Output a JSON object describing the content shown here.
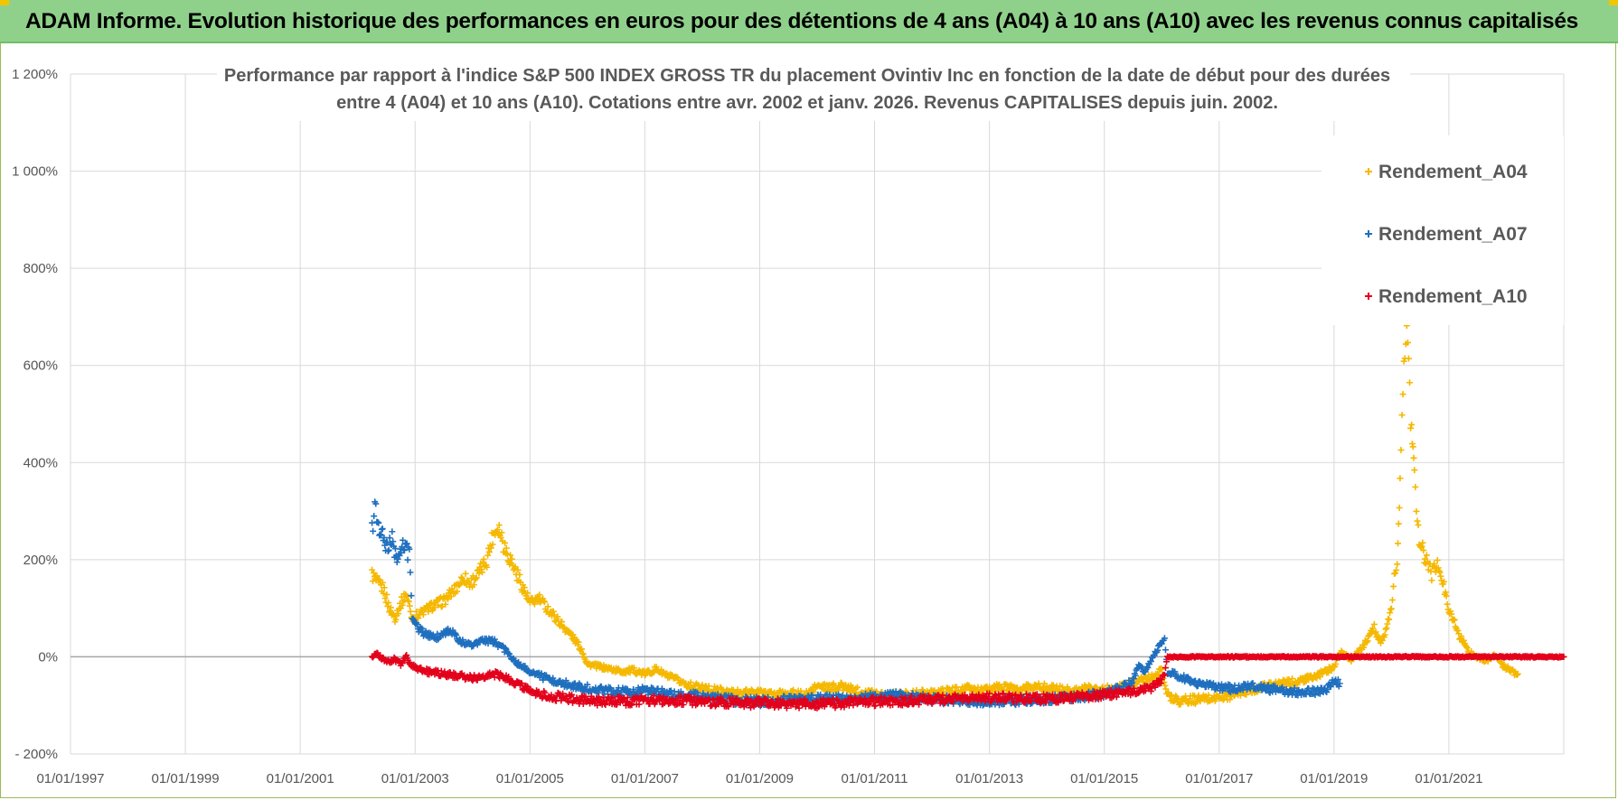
{
  "header": {
    "title": "ADAM Informe. Evolution historique des performances en euros pour des détentions de 4 ans (A04) à 10 ans (A10) avec les revenus connus capitalisés"
  },
  "colors": {
    "header_bg": "#8fd18a",
    "a04": "#f5b800",
    "a07": "#1f6fbf",
    "a10": "#e3001b",
    "grid": "#d9d9d9",
    "zero_line": "#a6a6a6"
  },
  "chart_data": {
    "type": "scatter",
    "title_lines": [
      "Performance par rapport à l'indice S&P 500 INDEX GROSS TR  du placement Ovintiv Inc en fonction de la date de début pour des durées",
      "entre 4 (A04) et 10 ans (A10).  Cotations entre avr. 2002 et janv. 2026. Revenus CAPITALISES depuis juin. 2002."
    ],
    "ylim": [
      -200,
      1200
    ],
    "yticks": [
      {
        "value": -200,
        "label": "- 200%"
      },
      {
        "value": 0,
        "label": "0%"
      },
      {
        "value": 200,
        "label": "200%"
      },
      {
        "value": 400,
        "label": "400%"
      },
      {
        "value": 600,
        "label": "600%"
      },
      {
        "value": 800,
        "label": "800%"
      },
      {
        "value": 1000,
        "label": "1 000%"
      },
      {
        "value": 1200,
        "label": "1 200%"
      }
    ],
    "xlim": [
      1997.0,
      2023.0
    ],
    "xticks": [
      {
        "value": 1997.0,
        "label": "01/01/1997"
      },
      {
        "value": 1999.0,
        "label": "01/01/1999"
      },
      {
        "value": 2001.0,
        "label": "01/01/2001"
      },
      {
        "value": 2003.0,
        "label": "01/01/2003"
      },
      {
        "value": 2005.0,
        "label": "01/01/2005"
      },
      {
        "value": 2007.0,
        "label": "01/01/2007"
      },
      {
        "value": 2009.0,
        "label": "01/01/2009"
      },
      {
        "value": 2011.0,
        "label": "01/01/2011"
      },
      {
        "value": 2013.0,
        "label": "01/01/2013"
      },
      {
        "value": 2015.0,
        "label": "01/01/2015"
      },
      {
        "value": 2017.0,
        "label": "01/01/2017"
      },
      {
        "value": 2019.0,
        "label": "01/01/2019"
      },
      {
        "value": 2021.0,
        "label": "01/01/2021"
      }
    ],
    "legend_position": "top-right",
    "series": [
      {
        "name": "Rendement_A04",
        "color": "#f5b800",
        "points": [
          [
            2002.25,
            170
          ],
          [
            2002.35,
            150
          ],
          [
            2002.45,
            140
          ],
          [
            2002.55,
            100
          ],
          [
            2002.65,
            80
          ],
          [
            2002.75,
            110
          ],
          [
            2002.85,
            130
          ],
          [
            2002.95,
            80
          ],
          [
            2003.1,
            90
          ],
          [
            2003.3,
            105
          ],
          [
            2003.5,
            115
          ],
          [
            2003.7,
            140
          ],
          [
            2003.85,
            165
          ],
          [
            2003.95,
            150
          ],
          [
            2004.1,
            170
          ],
          [
            2004.25,
            200
          ],
          [
            2004.35,
            250
          ],
          [
            2004.45,
            270
          ],
          [
            2004.55,
            230
          ],
          [
            2004.7,
            190
          ],
          [
            2004.85,
            150
          ],
          [
            2005.0,
            110
          ],
          [
            2005.15,
            120
          ],
          [
            2005.3,
            100
          ],
          [
            2005.45,
            80
          ],
          [
            2005.6,
            60
          ],
          [
            2005.75,
            40
          ],
          [
            2005.9,
            15
          ],
          [
            2006.0,
            -15
          ],
          [
            2006.2,
            -20
          ],
          [
            2006.4,
            -25
          ],
          [
            2006.6,
            -30
          ],
          [
            2006.8,
            -28
          ],
          [
            2007.0,
            -35
          ],
          [
            2007.2,
            -25
          ],
          [
            2007.4,
            -40
          ],
          [
            2007.6,
            -50
          ],
          [
            2007.8,
            -60
          ],
          [
            2008.0,
            -65
          ],
          [
            2008.3,
            -70
          ],
          [
            2008.6,
            -75
          ],
          [
            2008.9,
            -72
          ],
          [
            2009.2,
            -78
          ],
          [
            2009.5,
            -75
          ],
          [
            2009.8,
            -80
          ],
          [
            2010.0,
            -60
          ],
          [
            2010.2,
            -65
          ],
          [
            2010.4,
            -60
          ],
          [
            2010.7,
            -70
          ],
          [
            2011.0,
            -75
          ],
          [
            2011.3,
            -80
          ],
          [
            2011.6,
            -78
          ],
          [
            2012.0,
            -75
          ],
          [
            2012.3,
            -72
          ],
          [
            2012.6,
            -65
          ],
          [
            2012.9,
            -70
          ],
          [
            2013.2,
            -62
          ],
          [
            2013.5,
            -68
          ],
          [
            2013.8,
            -60
          ],
          [
            2014.1,
            -65
          ],
          [
            2014.4,
            -70
          ],
          [
            2014.7,
            -65
          ],
          [
            2015.0,
            -68
          ],
          [
            2015.3,
            -60
          ],
          [
            2015.6,
            -50
          ],
          [
            2015.9,
            -40
          ],
          [
            2016.0,
            -25
          ],
          [
            2016.1,
            -80
          ],
          [
            2016.3,
            -90
          ],
          [
            2016.6,
            -88
          ],
          [
            2016.9,
            -85
          ],
          [
            2017.2,
            -80
          ],
          [
            2017.5,
            -70
          ],
          [
            2017.8,
            -60
          ],
          [
            2018.1,
            -55
          ],
          [
            2018.4,
            -50
          ],
          [
            2018.7,
            -40
          ],
          [
            2019.0,
            -20
          ],
          [
            2019.1,
            10
          ],
          [
            2019.3,
            -5
          ],
          [
            2019.5,
            20
          ],
          [
            2019.6,
            40
          ],
          [
            2019.7,
            60
          ],
          [
            2019.8,
            30
          ],
          [
            2019.9,
            50
          ],
          [
            2020.0,
            100
          ],
          [
            2020.05,
            160
          ],
          [
            2020.1,
            200
          ],
          [
            2020.15,
            350
          ],
          [
            2020.2,
            540
          ],
          [
            2020.25,
            680
          ],
          [
            2020.3,
            600
          ],
          [
            2020.35,
            460
          ],
          [
            2020.4,
            380
          ],
          [
            2020.45,
            280
          ],
          [
            2020.5,
            230
          ],
          [
            2020.6,
            200
          ],
          [
            2020.7,
            170
          ],
          [
            2020.8,
            190
          ],
          [
            2020.9,
            150
          ],
          [
            2021.0,
            100
          ],
          [
            2021.1,
            70
          ],
          [
            2021.2,
            40
          ],
          [
            2021.35,
            10
          ],
          [
            2021.5,
            0
          ],
          [
            2021.65,
            -10
          ],
          [
            2021.8,
            5
          ],
          [
            2021.95,
            -20
          ],
          [
            2022.1,
            -30
          ],
          [
            2022.2,
            -35
          ]
        ]
      },
      {
        "name": "Rendement_A07",
        "color": "#1f6fbf",
        "points": [
          [
            2002.25,
            260
          ],
          [
            2002.3,
            310
          ],
          [
            2002.35,
            280
          ],
          [
            2002.42,
            250
          ],
          [
            2002.5,
            220
          ],
          [
            2002.6,
            240
          ],
          [
            2002.7,
            200
          ],
          [
            2002.8,
            230
          ],
          [
            2002.9,
            210
          ],
          [
            2002.95,
            80
          ],
          [
            2003.05,
            60
          ],
          [
            2003.2,
            45
          ],
          [
            2003.4,
            40
          ],
          [
            2003.6,
            55
          ],
          [
            2003.8,
            30
          ],
          [
            2004.0,
            25
          ],
          [
            2004.2,
            35
          ],
          [
            2004.4,
            30
          ],
          [
            2004.6,
            10
          ],
          [
            2004.8,
            -15
          ],
          [
            2005.0,
            -30
          ],
          [
            2005.2,
            -40
          ],
          [
            2005.4,
            -50
          ],
          [
            2005.6,
            -55
          ],
          [
            2005.8,
            -60
          ],
          [
            2006.0,
            -65
          ],
          [
            2006.3,
            -70
          ],
          [
            2006.6,
            -72
          ],
          [
            2007.0,
            -70
          ],
          [
            2007.4,
            -75
          ],
          [
            2007.8,
            -80
          ],
          [
            2008.2,
            -85
          ],
          [
            2008.6,
            -90
          ],
          [
            2009.0,
            -92
          ],
          [
            2009.4,
            -90
          ],
          [
            2009.8,
            -88
          ],
          [
            2010.2,
            -85
          ],
          [
            2010.6,
            -88
          ],
          [
            2011.0,
            -82
          ],
          [
            2011.4,
            -80
          ],
          [
            2011.8,
            -85
          ],
          [
            2012.2,
            -88
          ],
          [
            2012.6,
            -90
          ],
          [
            2013.0,
            -92
          ],
          [
            2013.4,
            -90
          ],
          [
            2013.8,
            -88
          ],
          [
            2014.2,
            -86
          ],
          [
            2014.6,
            -82
          ],
          [
            2015.0,
            -75
          ],
          [
            2015.3,
            -65
          ],
          [
            2015.5,
            -50
          ],
          [
            2015.6,
            -20
          ],
          [
            2015.7,
            -30
          ],
          [
            2015.8,
            -10
          ],
          [
            2015.9,
            10
          ],
          [
            2016.0,
            30
          ],
          [
            2016.05,
            40
          ],
          [
            2016.1,
            -30
          ],
          [
            2016.3,
            -40
          ],
          [
            2016.6,
            -55
          ],
          [
            2016.9,
            -60
          ],
          [
            2017.2,
            -65
          ],
          [
            2017.5,
            -60
          ],
          [
            2017.8,
            -65
          ],
          [
            2018.1,
            -70
          ],
          [
            2018.4,
            -72
          ],
          [
            2018.7,
            -70
          ],
          [
            2018.9,
            -65
          ],
          [
            2019.0,
            -50
          ],
          [
            2019.1,
            -55
          ]
        ]
      },
      {
        "name": "Rendement_A10",
        "color": "#e3001b",
        "points": [
          [
            2002.25,
            0
          ],
          [
            2002.35,
            5
          ],
          [
            2002.45,
            -5
          ],
          [
            2002.55,
            -10
          ],
          [
            2002.65,
            -5
          ],
          [
            2002.75,
            -15
          ],
          [
            2002.85,
            0
          ],
          [
            2002.95,
            -20
          ],
          [
            2003.2,
            -30
          ],
          [
            2003.5,
            -35
          ],
          [
            2003.8,
            -40
          ],
          [
            2004.1,
            -45
          ],
          [
            2004.4,
            -35
          ],
          [
            2004.7,
            -50
          ],
          [
            2005.0,
            -70
          ],
          [
            2005.3,
            -80
          ],
          [
            2005.6,
            -85
          ],
          [
            2006.0,
            -90
          ],
          [
            2006.4,
            -92
          ],
          [
            2006.8,
            -90
          ],
          [
            2007.2,
            -88
          ],
          [
            2007.6,
            -90
          ],
          [
            2008.0,
            -92
          ],
          [
            2008.4,
            -93
          ],
          [
            2008.8,
            -95
          ],
          [
            2009.2,
            -96
          ],
          [
            2009.6,
            -97
          ],
          [
            2010.0,
            -96
          ],
          [
            2010.4,
            -95
          ],
          [
            2010.8,
            -93
          ],
          [
            2011.2,
            -92
          ],
          [
            2011.6,
            -90
          ],
          [
            2012.0,
            -88
          ],
          [
            2012.4,
            -86
          ],
          [
            2012.8,
            -85
          ],
          [
            2013.2,
            -84
          ],
          [
            2013.6,
            -85
          ],
          [
            2014.0,
            -86
          ],
          [
            2014.4,
            -84
          ],
          [
            2014.8,
            -80
          ],
          [
            2015.2,
            -75
          ],
          [
            2015.5,
            -72
          ],
          [
            2015.8,
            -65
          ],
          [
            2016.0,
            -50
          ],
          [
            2016.05,
            -35
          ],
          [
            2016.1,
            0
          ],
          [
            2016.5,
            0
          ],
          [
            2017.0,
            0
          ],
          [
            2017.5,
            0
          ],
          [
            2018.0,
            0
          ],
          [
            2018.5,
            0
          ],
          [
            2019.0,
            0
          ],
          [
            2019.5,
            0
          ],
          [
            2020.0,
            0
          ],
          [
            2020.5,
            0
          ],
          [
            2021.0,
            0
          ],
          [
            2021.5,
            0
          ],
          [
            2022.0,
            0
          ],
          [
            2022.5,
            0
          ],
          [
            2023.0,
            0
          ]
        ]
      }
    ]
  }
}
